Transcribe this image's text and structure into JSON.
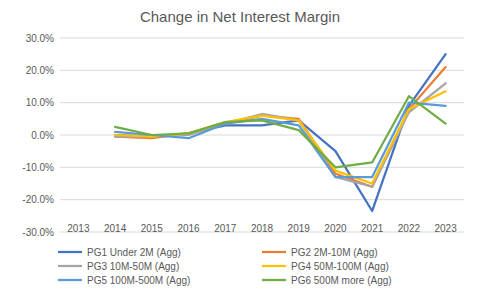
{
  "chart_data": {
    "type": "line",
    "title": "Change in Net Interest Margin",
    "categories": [
      "2013",
      "2014",
      "2015",
      "2016",
      "2017",
      "2018",
      "2019",
      "2020",
      "2021",
      "2022",
      "2023"
    ],
    "series": [
      {
        "name": "PG1 Under 2M (Agg)",
        "color": "#4472c4",
        "values": [
          null,
          0.0,
          -0.5,
          0.5,
          3.0,
          3.0,
          4.5,
          -5.0,
          -23.5,
          9.0,
          25.0
        ]
      },
      {
        "name": "PG2 2M-10M (Agg)",
        "color": "#ed7d31",
        "values": [
          null,
          -0.5,
          -1.0,
          0.5,
          3.5,
          6.0,
          5.0,
          -12.0,
          -16.0,
          8.0,
          21.0
        ]
      },
      {
        "name": "PG3 10M-50M (Agg)",
        "color": "#a5a5a5",
        "values": [
          null,
          -0.5,
          -0.5,
          0.0,
          3.5,
          6.5,
          4.5,
          -13.0,
          -16.0,
          7.0,
          16.0
        ]
      },
      {
        "name": "PG4 50M-100M (Agg)",
        "color": "#ffc000",
        "values": [
          null,
          0.0,
          -0.5,
          0.5,
          4.0,
          6.0,
          4.5,
          -11.0,
          -15.0,
          8.0,
          13.5
        ]
      },
      {
        "name": "PG5 100M-500M (Agg)",
        "color": "#5b9bd5",
        "values": [
          null,
          1.0,
          0.0,
          -1.0,
          3.5,
          5.0,
          3.0,
          -13.0,
          -13.0,
          10.0,
          9.0
        ]
      },
      {
        "name": "PG6 500M more (Agg)",
        "color": "#70ad47",
        "values": [
          null,
          2.5,
          0.0,
          0.5,
          4.0,
          4.5,
          1.5,
          -10.0,
          -8.5,
          12.0,
          3.5
        ]
      }
    ],
    "ylim": [
      -30,
      30
    ],
    "yticks": [
      {
        "value": -30,
        "label": "-30.0%"
      },
      {
        "value": -20,
        "label": "-20.0%"
      },
      {
        "value": -10,
        "label": "-10.0%"
      },
      {
        "value": 0,
        "label": "0.0%"
      },
      {
        "value": 10,
        "label": "10.0%"
      },
      {
        "value": 20,
        "label": "20.0%"
      },
      {
        "value": 30,
        "label": "30.0%"
      }
    ],
    "grid": true,
    "legend": "bottom"
  }
}
